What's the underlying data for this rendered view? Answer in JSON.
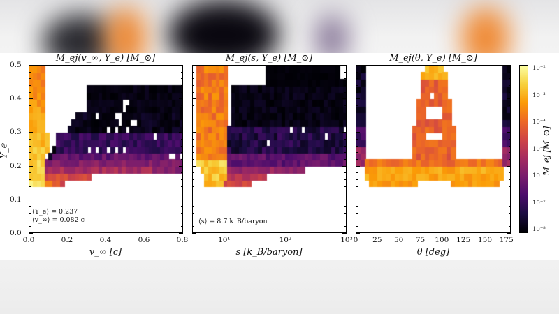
{
  "chart_data": [
    {
      "type": "heatmap",
      "title": "M_ej(v_∞, Y_e) [M_⊙]",
      "xlabel": "v_∞ [c]",
      "ylabel": "Y_e",
      "xlim": [
        0.0,
        0.8
      ],
      "ylim": [
        0.0,
        0.5
      ],
      "xticks": [
        "0.0",
        "0.2",
        "0.4",
        "0.6",
        "0.8"
      ],
      "yticks": [
        "0.0",
        "0.1",
        "0.2",
        "0.3",
        "0.4",
        "0.5"
      ],
      "annotations": [
        "⟨Y_e⟩ = 0.237",
        "⟨v_∞⟩ = 0.082 c"
      ],
      "description": "Bright yellow/orange ridge at low v_∞ (0–0.1c) spanning Y_e 0.14–0.5; broad purple/dark band for v_∞ 0.1–0.8c at Y_e 0.17–0.45 with near-black region Y_e 0.3–0.45"
    },
    {
      "type": "heatmap",
      "title": "M_ej(s, Y_e) [M_⊙]",
      "xlabel": "s [k_B/baryon]",
      "ylabel": "Y_e",
      "xscale": "log",
      "xlim": [
        3,
        1000
      ],
      "ylim": [
        0.0,
        0.5
      ],
      "xticks": [
        "10¹",
        "10²",
        "10³"
      ],
      "annotations": [
        "⟨s⟩ = 8.7 k_B/baryon"
      ],
      "description": "Orange/yellow ridge at s ≈ 4–12 k_B/baryon spanning Y_e 0.14–0.5; purple/dark region for s 12–1000 at Y_e 0.17–0.5"
    },
    {
      "type": "heatmap",
      "title": "M_ej(θ, Y_e) [M_⊙]",
      "xlabel": "θ [deg]",
      "ylabel": "Y_e",
      "xlim": [
        0,
        180
      ],
      "ylim": [
        0.0,
        0.5
      ],
      "xticks": [
        "0",
        "25",
        "50",
        "75",
        "100",
        "125",
        "150",
        "175"
      ],
      "description": "Orange/yellow band at Y_e 0.14–0.22 across all θ; central peak near θ≈90° extending to Y_e 0.5; dark/purple columns near θ≈0–15° and 165–180°"
    }
  ],
  "colorbar": {
    "label": "M_ej [M_⊙]",
    "scale": "log",
    "range": [
      1e-08,
      0.01
    ],
    "ticks": [
      "10⁻²",
      "10⁻³",
      "10⁻⁴",
      "10⁻⁵",
      "10⁻⁶",
      "10⁻⁷",
      "10⁻⁸"
    ],
    "colormap": "inferno",
    "colors": [
      "#000004",
      "#1b0c41",
      "#4a0c6b",
      "#781c6d",
      "#a52c60",
      "#cf4446",
      "#ed6925",
      "#fb9b06",
      "#f7d13d",
      "#fcffa4"
    ]
  },
  "labels": {
    "p1_title_main": "M",
    "p1_title": "M_ej(v_∞, Y_e) [M_⊙]",
    "p2_title": "M_ej(s, Y_e) [M_⊙]",
    "p3_title": "M_ej(θ, Y_e) [M_⊙]",
    "p1_xlabel": "v_∞ [c]",
    "p2_xlabel": "s [k_B/baryon]",
    "p3_xlabel": "θ [deg]",
    "ylabel": "Y_e",
    "cb_label": "M_ej [M_⊙]",
    "ann_ye": "⟨Y_e⟩ = 0.237",
    "ann_v": "⟨v_∞⟩ = 0.082 c",
    "ann_s": "⟨s⟩ = 8.7 k_B/baryon"
  }
}
